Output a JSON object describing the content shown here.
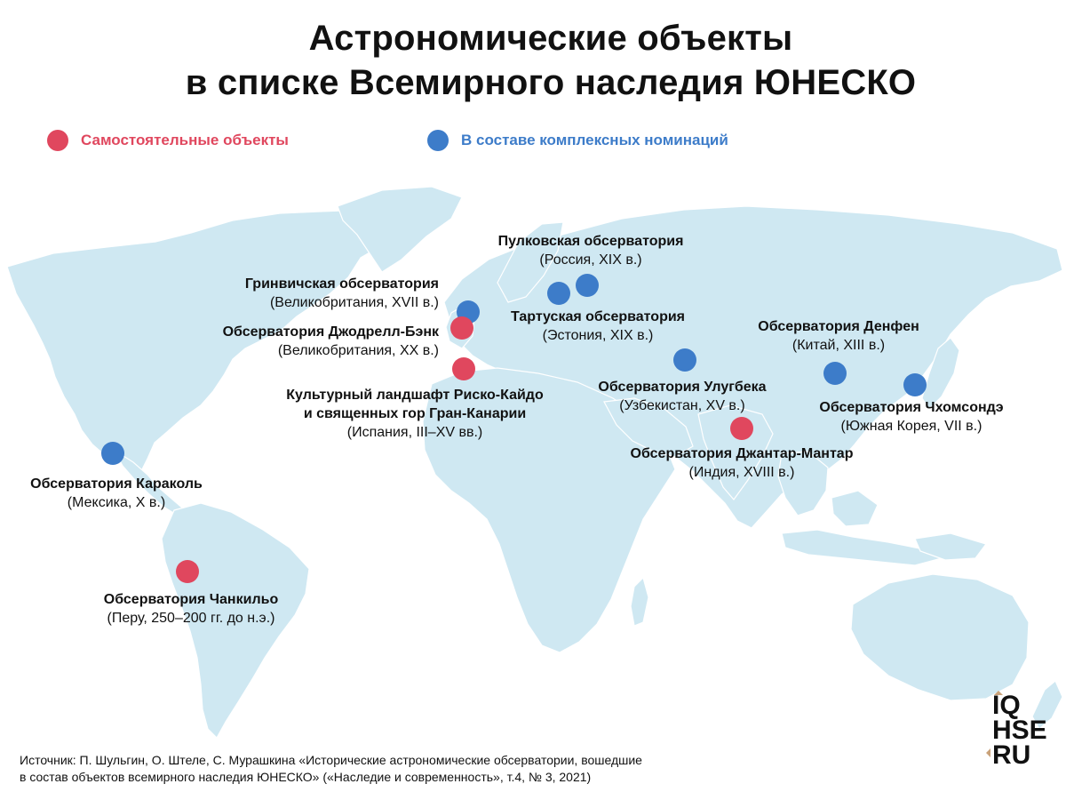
{
  "title": {
    "line1": "Астрономические объекты",
    "line2": "в списке Всемирного наследия ЮНЕСКО"
  },
  "colors": {
    "land": "#cfe8f2",
    "standalone": "#e0475e",
    "complex": "#3d7cc9"
  },
  "legend": {
    "standalone": "Самостоятельные объекты",
    "complex": "В составе комплексных номинаций"
  },
  "sites": [
    {
      "name": "Пулковская обсерватория",
      "sub": "(Россия, XIX в.)",
      "type": "complex"
    },
    {
      "name": "Гринвичская обсерватория",
      "sub": "(Великобритания, XVII в.)",
      "type": "complex"
    },
    {
      "name": "Обсерватория Джодрелл-Бэнк",
      "sub": "(Великобритания, XX в.)",
      "type": "standalone"
    },
    {
      "name": "Тартуская обсерватория",
      "sub": "(Эстония, XIX в.)",
      "type": "complex"
    },
    {
      "name": "Культурный ландшафт Риско-Кайдо",
      "name2": "и священных гор Гран-Канарии",
      "sub": "(Испания, III–XV вв.)",
      "type": "standalone"
    },
    {
      "name": "Обсерватория Улугбека",
      "sub": "(Узбекистан, XV в.)",
      "type": "complex"
    },
    {
      "name": "Обсерватория Денфен",
      "sub": "(Китай, XIII в.)",
      "type": "complex"
    },
    {
      "name": "Обсерватория Чхомсондэ",
      "sub": "(Южная Корея, VII в.)",
      "type": "complex"
    },
    {
      "name": "Обсерватория Джантар-Мантар",
      "sub": "(Индия, XVIII в.)",
      "type": "standalone"
    },
    {
      "name": "Обсерватория Караколь",
      "sub": "(Мексика, X в.)",
      "type": "complex"
    },
    {
      "name": "Обсерватория Чанкильо",
      "sub": "(Перу, 250–200 гг. до н.э.)",
      "type": "standalone"
    }
  ],
  "source": {
    "line1": "Источник: П. Шульгин, О. Штеле, С. Мурашкина «Исторические астрономические обсерватории, вошедшие",
    "line2": "в состав объектов всемирного наследия ЮНЕСКО» («Наследие и современность», т.4, № 3, 2021)"
  },
  "logo": {
    "line1": "IQ",
    "line2": "HSE",
    "line3": "RU"
  }
}
